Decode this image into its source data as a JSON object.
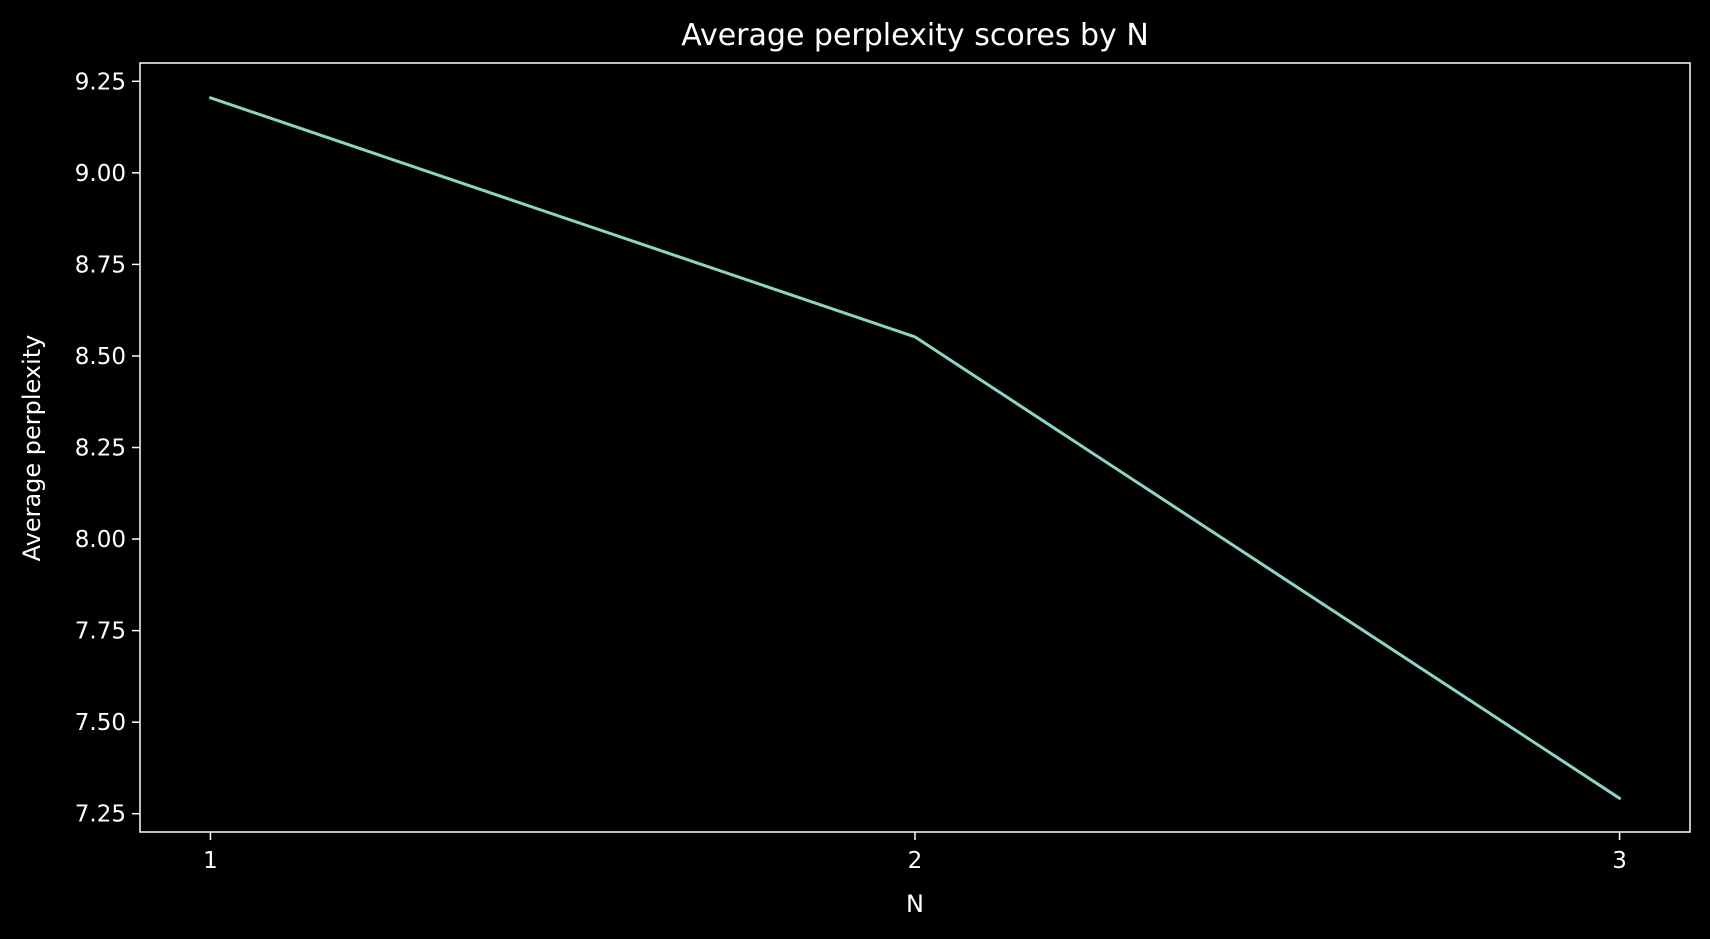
{
  "chart_data": {
    "type": "line",
    "title": "Average perplexity scores by N",
    "xlabel": "N",
    "ylabel": "Average perplexity",
    "x": [
      1,
      2,
      3
    ],
    "series": [
      {
        "values": [
          9.205,
          8.552,
          7.292
        ]
      }
    ],
    "xlim": [
      0.9,
      3.1
    ],
    "ylim": [
      7.2,
      9.3
    ],
    "xticks": [
      {
        "value": 1,
        "label": "1"
      },
      {
        "value": 2,
        "label": "2"
      },
      {
        "value": 3,
        "label": "3"
      }
    ],
    "yticks": [
      {
        "value": 7.25,
        "label": "7.25"
      },
      {
        "value": 7.5,
        "label": "7.50"
      },
      {
        "value": 7.75,
        "label": "7.75"
      },
      {
        "value": 8.0,
        "label": "8.00"
      },
      {
        "value": 8.25,
        "label": "8.25"
      },
      {
        "value": 8.5,
        "label": "8.50"
      },
      {
        "value": 8.75,
        "label": "8.75"
      },
      {
        "value": 9.0,
        "label": "9.00"
      },
      {
        "value": 9.25,
        "label": "9.25"
      }
    ],
    "grid": false,
    "legend": "none",
    "colors": {
      "background": "#000000",
      "axes": "#ffffff",
      "text": "#ffffff",
      "line": "#8dd3c7"
    }
  }
}
